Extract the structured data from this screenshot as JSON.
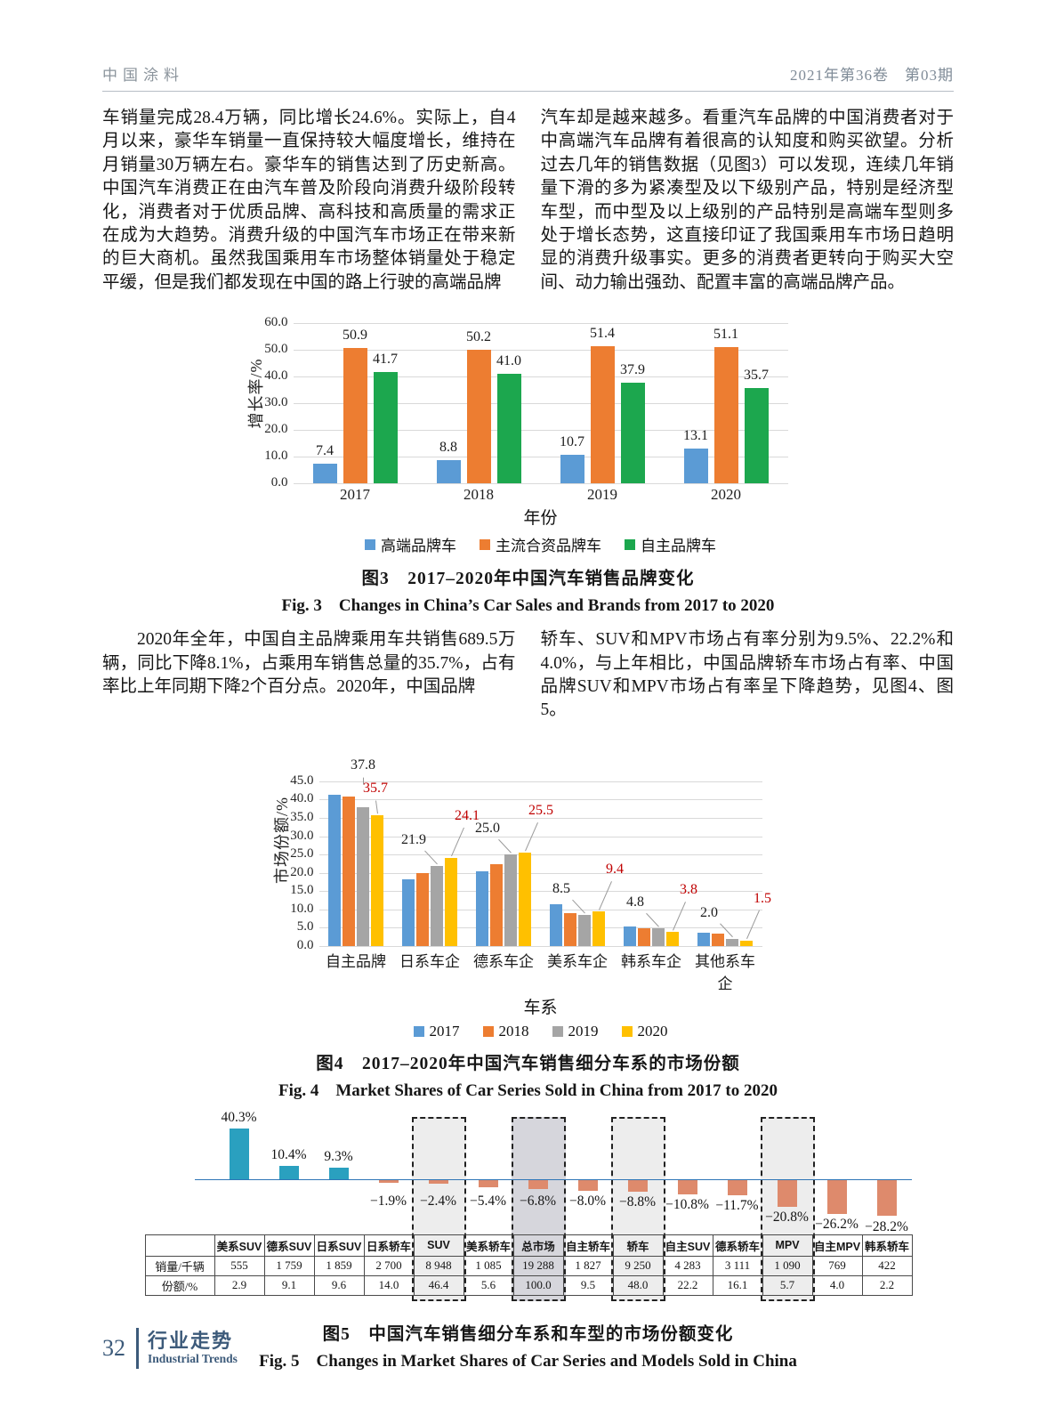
{
  "page_header": {
    "journal": "中国涂料",
    "issue": "2021年第36卷　第03期"
  },
  "body": {
    "p1_left": "车销量完成28.4万辆，同比增长24.6%。实际上，自4月以来，豪华车销量一直保持较大幅度增长，维持在月销量30万辆左右。豪华车的销售达到了历史新高。中国汽车消费正在由汽车普及阶段向消费升级阶段转化，消费者对于优质品牌、高科技和高质量的需求正在成为大趋势。消费升级的中国汽车市场正在带来新的巨大商机。虽然我国乘用车市场整体销量处于稳定平缓，但是我们都发现在中国的路上行驶的高端品牌",
    "p1_right": "汽车却是越来越多。看重汽车品牌的中国消费者对于中高端汽车品牌有着很高的认知度和购买欲望。分析过去几年的销售数据（见图3）可以发现，连续几年销量下滑的多为紧凑型及以下级别产品，特别是经济型车型，而中型及以上级别的产品特别是高端车型则多处于增长态势，这直接印证了我国乘用车市场日趋明显的消费升级事实。更多的消费者更转向于购买大空间、动力输出强劲、配置丰富的高端品牌产品。",
    "p2_left": "2020年全年，中国自主品牌乘用车共销售689.5万辆，同比下降8.1%，占乘用车销售总量的35.7%，占有率比上年同期下降2个百分点。2020年，中国品牌",
    "p2_right": "轿车、SUV和MPV市场占有率分别为9.5%、22.2%和4.0%，与上年相比，中国品牌轿车市场占有率、中国品牌SUV和MPV市场占有率呈下降趋势，见图4、图5。"
  },
  "figures": {
    "fig3": {
      "caption_zh": "图3　2017–2020年中国汽车销售品牌变化",
      "caption_en": "Fig. 3　Changes in China’s Car Sales and Brands from 2017 to 2020"
    },
    "fig4": {
      "caption_zh": "图4　2017–2020年中国汽车销售细分车系的市场份额",
      "caption_en": "Fig. 4　Market Shares of Car Series Sold in China from 2017 to 2020"
    },
    "fig5": {
      "caption_zh": "图5　中国汽车销售细分车系和车型的市场份额变化",
      "caption_en": "Fig. 5　Changes in Market Shares of Car Series and Models Sold in China"
    }
  },
  "footer": {
    "page_number": "32",
    "section_zh": "行业走势",
    "section_en": "Industrial Trends"
  },
  "chart_data": [
    {
      "id": "fig3",
      "type": "bar",
      "title": "2017–2020年中国汽车销售品牌变化",
      "categories": [
        "2017",
        "2018",
        "2019",
        "2020"
      ],
      "series": [
        {
          "name": "高端品牌车",
          "color": "#5B9BD5",
          "values": [
            7.4,
            8.8,
            10.7,
            13.1
          ]
        },
        {
          "name": "主流合资品牌车",
          "color": "#ED7D31",
          "values": [
            50.9,
            50.2,
            51.4,
            51.1
          ]
        },
        {
          "name": "自主品牌车",
          "color": "#1CA74E",
          "values": [
            41.7,
            41.0,
            37.9,
            35.7
          ]
        }
      ],
      "xlabel": "年份",
      "ylabel": "增长率/%",
      "ylim": [
        0,
        60
      ],
      "ytick_step": 10,
      "grid": true,
      "legend_position": "bottom"
    },
    {
      "id": "fig4",
      "type": "bar",
      "title": "2017–2020年中国汽车销售细分车系的市场份额",
      "categories": [
        "自主品牌",
        "日系车企",
        "德系车企",
        "美系车企",
        "韩系车企",
        "其他系车企"
      ],
      "series": [
        {
          "name": "2017",
          "color": "#5B9BD5",
          "values": [
            41.4,
            18.2,
            20.4,
            11.5,
            5.3,
            3.6
          ]
        },
        {
          "name": "2018",
          "color": "#ED7D31",
          "values": [
            40.8,
            19.8,
            22.3,
            9.0,
            4.9,
            3.4
          ]
        },
        {
          "name": "2019",
          "color": "#A5A5A5",
          "values": [
            37.8,
            21.9,
            25.0,
            8.5,
            4.8,
            2.0
          ]
        },
        {
          "name": "2020",
          "color": "#FFC000",
          "values": [
            35.7,
            24.1,
            25.5,
            9.4,
            3.8,
            1.5
          ]
        }
      ],
      "annotated_series_black": "2019",
      "annotated_series_red": "2020",
      "annotation_red_color": "#C00000",
      "xlabel": "车系",
      "ylabel": "市场份额/%",
      "ylim": [
        0,
        45
      ],
      "ytick_step": 5,
      "grid": true,
      "legend_position": "bottom"
    },
    {
      "id": "fig5",
      "type": "bar",
      "title": "中国汽车销售细分车系和车型的市场份额变化",
      "categories": [
        "美系SUV",
        "德系SUV",
        "日系SUV",
        "日系轿车",
        "SUV",
        "美系轿车",
        "总市场",
        "自主轿车",
        "轿车",
        "自主SUV",
        "德系轿车",
        "MPV",
        "自主MPV",
        "韩系轿车"
      ],
      "values": [
        40.3,
        10.4,
        9.3,
        -1.9,
        -2.4,
        -5.4,
        -6.8,
        -8.0,
        -8.8,
        -10.8,
        -11.7,
        -20.8,
        -26.2,
        -28.2
      ],
      "bar_labels": [
        "40.3%",
        "10.4%",
        "9.3%",
        "−1.9%",
        "−2.4%",
        "−5.4%",
        "−6.8%",
        "−8.0%",
        "−8.8%",
        "−10.8%",
        "−11.7%",
        "−20.8%",
        "−26.2%",
        "−28.2%"
      ],
      "positive_color": "#2AA0BF",
      "negative_color": "#DE8A6C",
      "baseline_color": "#2e75b6",
      "highlighted_columns": [
        "SUV",
        "总市场",
        "轿车",
        "MPV"
      ],
      "highlight_fill": "#ededed",
      "highlight_fill_dark": "#d6d6dc",
      "table": {
        "corner": "",
        "row_labels": [
          "销量/千辆",
          "份额/%"
        ],
        "sales_thousand": [
          "555",
          "1 759",
          "1 859",
          "2 700",
          "8 948",
          "1 085",
          "19 288",
          "1 827",
          "9 250",
          "4 283",
          "3 111",
          "1 090",
          "769",
          "422"
        ],
        "share_percent": [
          "2.9",
          "9.1",
          "9.6",
          "14.0",
          "46.4",
          "5.6",
          "100.0",
          "9.5",
          "48.0",
          "22.2",
          "16.1",
          "5.7",
          "4.0",
          "2.2"
        ]
      }
    }
  ]
}
